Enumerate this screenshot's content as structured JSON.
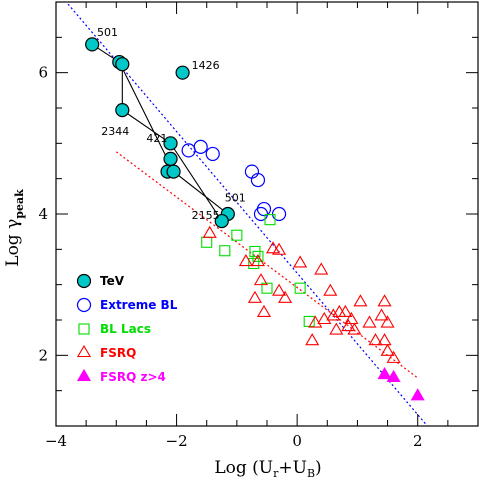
{
  "chart_data": {
    "type": "scatter",
    "title": "",
    "xlabel_main": "Log (U",
    "xlabel_sub1": "r",
    "xlabel_mid": "+U",
    "xlabel_sub2": "B",
    "xlabel_close": ")",
    "ylabel_main": "Log γ",
    "ylabel_sub": "peak",
    "xlim": [
      -4,
      3
    ],
    "ylim": [
      1,
      7
    ],
    "x_ticks": [
      -4,
      -2,
      0,
      2
    ],
    "x_tick_labels": [
      "−4",
      "−2",
      "0",
      "2"
    ],
    "y_ticks": [
      2,
      4,
      6
    ],
    "y_tick_labels": [
      "2",
      "4",
      "6"
    ],
    "legend_position": "bottom-left",
    "colors": {
      "tev": "#00c8c8",
      "extreme_bl": "#0000ff",
      "bl_lacs": "#00dd00",
      "fsrq": "#ff0000",
      "fsrq_z4": "#ff00ff"
    },
    "series": [
      {
        "name": "TeV",
        "marker": "filled-circle",
        "color_key": "tev",
        "points": [
          {
            "x": -3.4,
            "y": 6.4
          },
          {
            "x": -2.95,
            "y": 6.15
          },
          {
            "x": -2.9,
            "y": 6.12
          },
          {
            "x": -2.9,
            "y": 5.47
          },
          {
            "x": -1.9,
            "y": 6.0
          },
          {
            "x": -2.1,
            "y": 5.0
          },
          {
            "x": -2.1,
            "y": 4.78
          },
          {
            "x": -2.15,
            "y": 4.6
          },
          {
            "x": -2.05,
            "y": 4.6
          },
          {
            "x": -1.15,
            "y": 4.0
          },
          {
            "x": -1.25,
            "y": 3.9
          }
        ]
      },
      {
        "name": "Extreme BL",
        "marker": "open-circle",
        "color_key": "extreme_bl",
        "points": [
          {
            "x": -1.8,
            "y": 4.9
          },
          {
            "x": -1.6,
            "y": 4.95
          },
          {
            "x": -1.4,
            "y": 4.85
          },
          {
            "x": -0.75,
            "y": 4.6
          },
          {
            "x": -0.65,
            "y": 4.48
          },
          {
            "x": -0.55,
            "y": 4.07
          },
          {
            "x": -0.6,
            "y": 4.0
          },
          {
            "x": -0.3,
            "y": 4.0
          }
        ]
      },
      {
        "name": "BL Lacs",
        "marker": "open-square",
        "color_key": "bl_lacs",
        "points": [
          {
            "x": -1.5,
            "y": 3.6
          },
          {
            "x": -1.0,
            "y": 3.7
          },
          {
            "x": -1.2,
            "y": 3.48
          },
          {
            "x": -0.7,
            "y": 3.47
          },
          {
            "x": -0.65,
            "y": 3.4
          },
          {
            "x": -0.72,
            "y": 3.3
          },
          {
            "x": -0.45,
            "y": 3.92
          },
          {
            "x": -0.5,
            "y": 2.95
          },
          {
            "x": 0.05,
            "y": 2.95
          },
          {
            "x": 0.2,
            "y": 2.48
          }
        ]
      },
      {
        "name": "FSRQ",
        "marker": "open-triangle",
        "color_key": "fsrq",
        "points": [
          {
            "x": -1.45,
            "y": 3.72
          },
          {
            "x": -0.85,
            "y": 3.32
          },
          {
            "x": -0.65,
            "y": 3.32
          },
          {
            "x": -0.4,
            "y": 3.5
          },
          {
            "x": -0.3,
            "y": 3.48
          },
          {
            "x": -0.6,
            "y": 3.05
          },
          {
            "x": -0.7,
            "y": 2.8
          },
          {
            "x": -0.3,
            "y": 2.9
          },
          {
            "x": -0.2,
            "y": 2.8
          },
          {
            "x": -0.55,
            "y": 2.6
          },
          {
            "x": 0.05,
            "y": 3.3
          },
          {
            "x": 0.4,
            "y": 3.2
          },
          {
            "x": 0.55,
            "y": 2.9
          },
          {
            "x": 0.7,
            "y": 2.6
          },
          {
            "x": 0.6,
            "y": 2.55
          },
          {
            "x": 0.45,
            "y": 2.5
          },
          {
            "x": 0.3,
            "y": 2.45
          },
          {
            "x": 0.8,
            "y": 2.6
          },
          {
            "x": 0.9,
            "y": 2.5
          },
          {
            "x": 1.05,
            "y": 2.75
          },
          {
            "x": 0.85,
            "y": 2.4
          },
          {
            "x": 0.65,
            "y": 2.35
          },
          {
            "x": 0.95,
            "y": 2.35
          },
          {
            "x": 1.2,
            "y": 2.45
          },
          {
            "x": 1.4,
            "y": 2.55
          },
          {
            "x": 1.5,
            "y": 2.45
          },
          {
            "x": 1.45,
            "y": 2.75
          },
          {
            "x": 0.25,
            "y": 2.2
          },
          {
            "x": 1.3,
            "y": 2.2
          },
          {
            "x": 1.5,
            "y": 2.05
          },
          {
            "x": 1.6,
            "y": 1.95
          },
          {
            "x": 1.45,
            "y": 2.2
          }
        ]
      },
      {
        "name": "FSRQ z>4",
        "marker": "filled-triangle",
        "color_key": "fsrq_z4",
        "points": [
          {
            "x": 1.45,
            "y": 1.72
          },
          {
            "x": 1.6,
            "y": 1.68
          },
          {
            "x": 2.0,
            "y": 1.42
          }
        ]
      }
    ],
    "connecting_lines": [
      [
        [
          -3.4,
          6.4
        ],
        [
          -2.95,
          6.15
        ],
        [
          -2.05,
          4.6
        ],
        [
          -1.15,
          4.0
        ],
        [
          -1.25,
          3.9
        ],
        [
          -2.1,
          5.0
        ],
        [
          -2.9,
          5.47
        ],
        [
          -2.9,
          6.12
        ]
      ]
    ],
    "fit_lines": [
      {
        "color_key": "extreme_bl",
        "style": "dotted",
        "x": [
          -3.8,
          2.3
        ],
        "y": [
          6.97,
          0.86
        ]
      },
      {
        "color_key": "fsrq",
        "style": "dotted",
        "x": [
          -3.0,
          2.0
        ],
        "y": [
          4.88,
          1.68
        ]
      }
    ],
    "annotations": [
      {
        "text": "501",
        "x": -3.32,
        "y": 6.52,
        "anchor": "start"
      },
      {
        "text": "1426",
        "x": -1.75,
        "y": 6.05,
        "anchor": "start"
      },
      {
        "text": "2344",
        "x": -3.25,
        "y": 5.12,
        "anchor": "start"
      },
      {
        "text": "421",
        "x": -2.5,
        "y": 5.02,
        "anchor": "start"
      },
      {
        "text": "501",
        "x": -1.2,
        "y": 4.18,
        "anchor": "start"
      },
      {
        "text": "2155",
        "x": -1.75,
        "y": 3.93,
        "anchor": "start"
      }
    ]
  }
}
